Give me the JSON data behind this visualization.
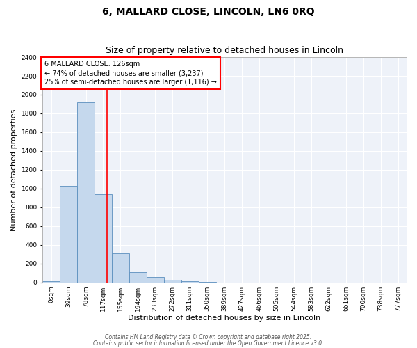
{
  "title_line1": "6, MALLARD CLOSE, LINCOLN, LN6 0RQ",
  "title_line2": "Size of property relative to detached houses in Lincoln",
  "xlabel": "Distribution of detached houses by size in Lincoln",
  "ylabel": "Number of detached properties",
  "bar_labels": [
    "0sqm",
    "39sqm",
    "78sqm",
    "117sqm",
    "155sqm",
    "194sqm",
    "233sqm",
    "272sqm",
    "311sqm",
    "350sqm",
    "389sqm",
    "427sqm",
    "466sqm",
    "505sqm",
    "544sqm",
    "583sqm",
    "622sqm",
    "661sqm",
    "700sqm",
    "738sqm",
    "777sqm"
  ],
  "bar_values": [
    15,
    1025,
    1920,
    940,
    310,
    110,
    55,
    25,
    15,
    5,
    0,
    0,
    0,
    0,
    0,
    0,
    0,
    0,
    0,
    0,
    0
  ],
  "bar_color": "#c5d8ed",
  "bar_edge_color": "#5b8fbe",
  "ylim": [
    0,
    2400
  ],
  "yticks": [
    0,
    200,
    400,
    600,
    800,
    1000,
    1200,
    1400,
    1600,
    1800,
    2000,
    2200,
    2400
  ],
  "red_line_x": 3.237,
  "annotation_box_text": "6 MALLARD CLOSE: 126sqm\n← 74% of detached houses are smaller (3,237)\n25% of semi-detached houses are larger (1,116) →",
  "footer_line1": "Contains HM Land Registry data © Crown copyright and database right 2025.",
  "footer_line2": "Contains public sector information licensed under the Open Government Licence v3.0.",
  "bg_color": "#eef2f9",
  "grid_color": "#ffffff",
  "title_fontsize": 10,
  "subtitle_fontsize": 9,
  "tick_fontsize": 6.5,
  "label_fontsize": 8,
  "annotation_fontsize": 7,
  "footer_fontsize": 5.5
}
